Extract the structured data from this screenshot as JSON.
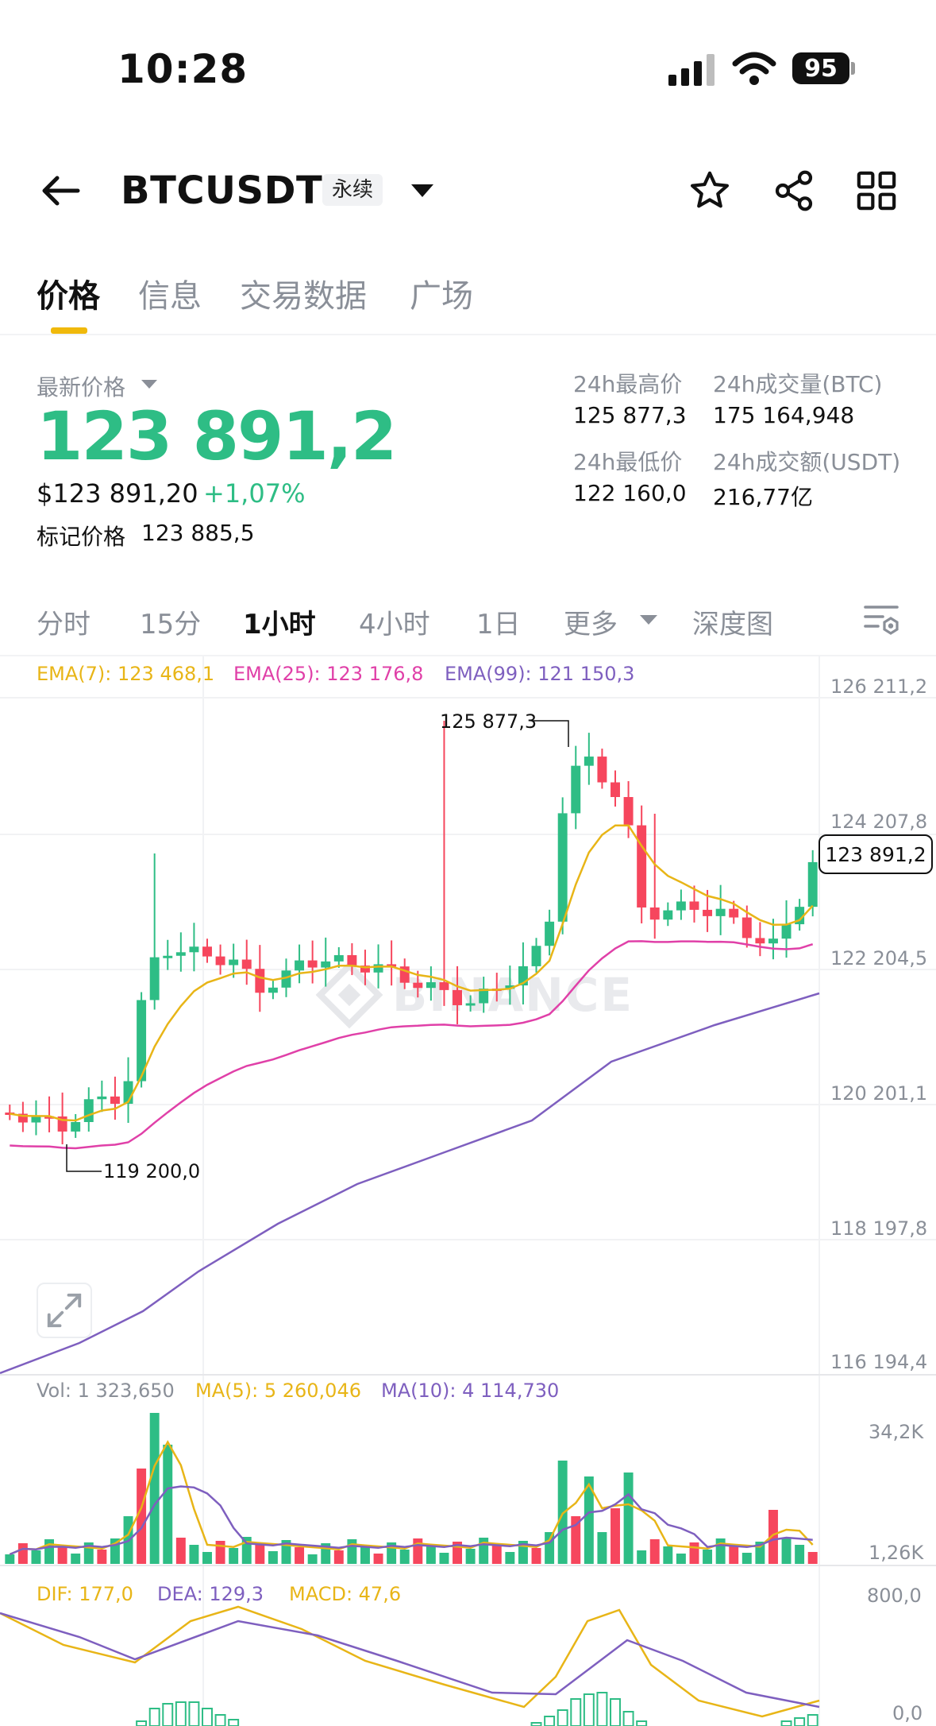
{
  "status_bar": {
    "time": "10:28",
    "battery": "95"
  },
  "header": {
    "symbol": "BTCUSDT",
    "contract_tag": "永续"
  },
  "tabs": [
    "价格",
    "信息",
    "交易数据",
    "广场"
  ],
  "price_panel": {
    "last_price_label": "最新价格",
    "last_price": "123 891,2",
    "usd_price": "$123 891,20",
    "change_pct": "+1,07%",
    "mark_price_label": "标记价格",
    "mark_price": "123 885,5",
    "stats": [
      {
        "label": "24h最高价",
        "value": "125 877,3"
      },
      {
        "label": "24h成交量(BTC)",
        "value": "175 164,948"
      },
      {
        "label": "24h最低价",
        "value": "122 160,0"
      },
      {
        "label": "24h成交额(USDT)",
        "value": "216,77亿"
      }
    ]
  },
  "intervals": [
    "分时",
    "15分",
    "1小时",
    "4小时",
    "1日",
    "更多",
    "深度图"
  ],
  "active_interval": "1小时",
  "ema_legend": {
    "ema7": "EMA(7): 123 468,1",
    "ema25": "EMA(25): 123 176,8",
    "ema99": "EMA(99): 121 150,3"
  },
  "price_axis": [
    "126 211,2",
    "124 207,8",
    "122 204,5",
    "120 201,1",
    "118 197,8",
    "116 194,4"
  ],
  "current_price_tag": "123 891,2",
  "annotations": {
    "high": "125 877,3",
    "low": "119 200,0"
  },
  "watermark": "BINANCE",
  "volume_legend": {
    "vol": "Vol: 1 323,650",
    "ma5": "MA(5): 5 260,046",
    "ma10": "MA(10): 4 114,730"
  },
  "volume_axis": [
    "34,2K",
    "1,26K"
  ],
  "macd_legend": {
    "dif": "DIF: 177,0",
    "dea": "DEA: 129,3",
    "macd": "MACD: 47,6"
  },
  "macd_axis": [
    "800,0",
    "0,0"
  ],
  "colors": {
    "up": "#2ebd85",
    "down": "#f6465d",
    "accent": "#f0b90b",
    "ema7": "#e8b517",
    "ema25": "#e040a8",
    "ema99": "#7e5fbf"
  },
  "icons": [
    "back-arrow-icon",
    "caret-down-icon",
    "star-icon",
    "share-icon",
    "grid-icon",
    "chart-settings-icon",
    "expand-icon"
  ],
  "chart_data": {
    "type": "candlestick",
    "interval": "1小时",
    "high_marker": 125877.3,
    "low_marker": 119200.0,
    "last": 123891.2,
    "ema7": 123468.1,
    "ema25": 123176.8,
    "ema99": 121150.3,
    "y_ticks": [
      126211.2,
      124207.8,
      122204.5,
      120201.1,
      118197.8,
      116194.4
    ]
  }
}
